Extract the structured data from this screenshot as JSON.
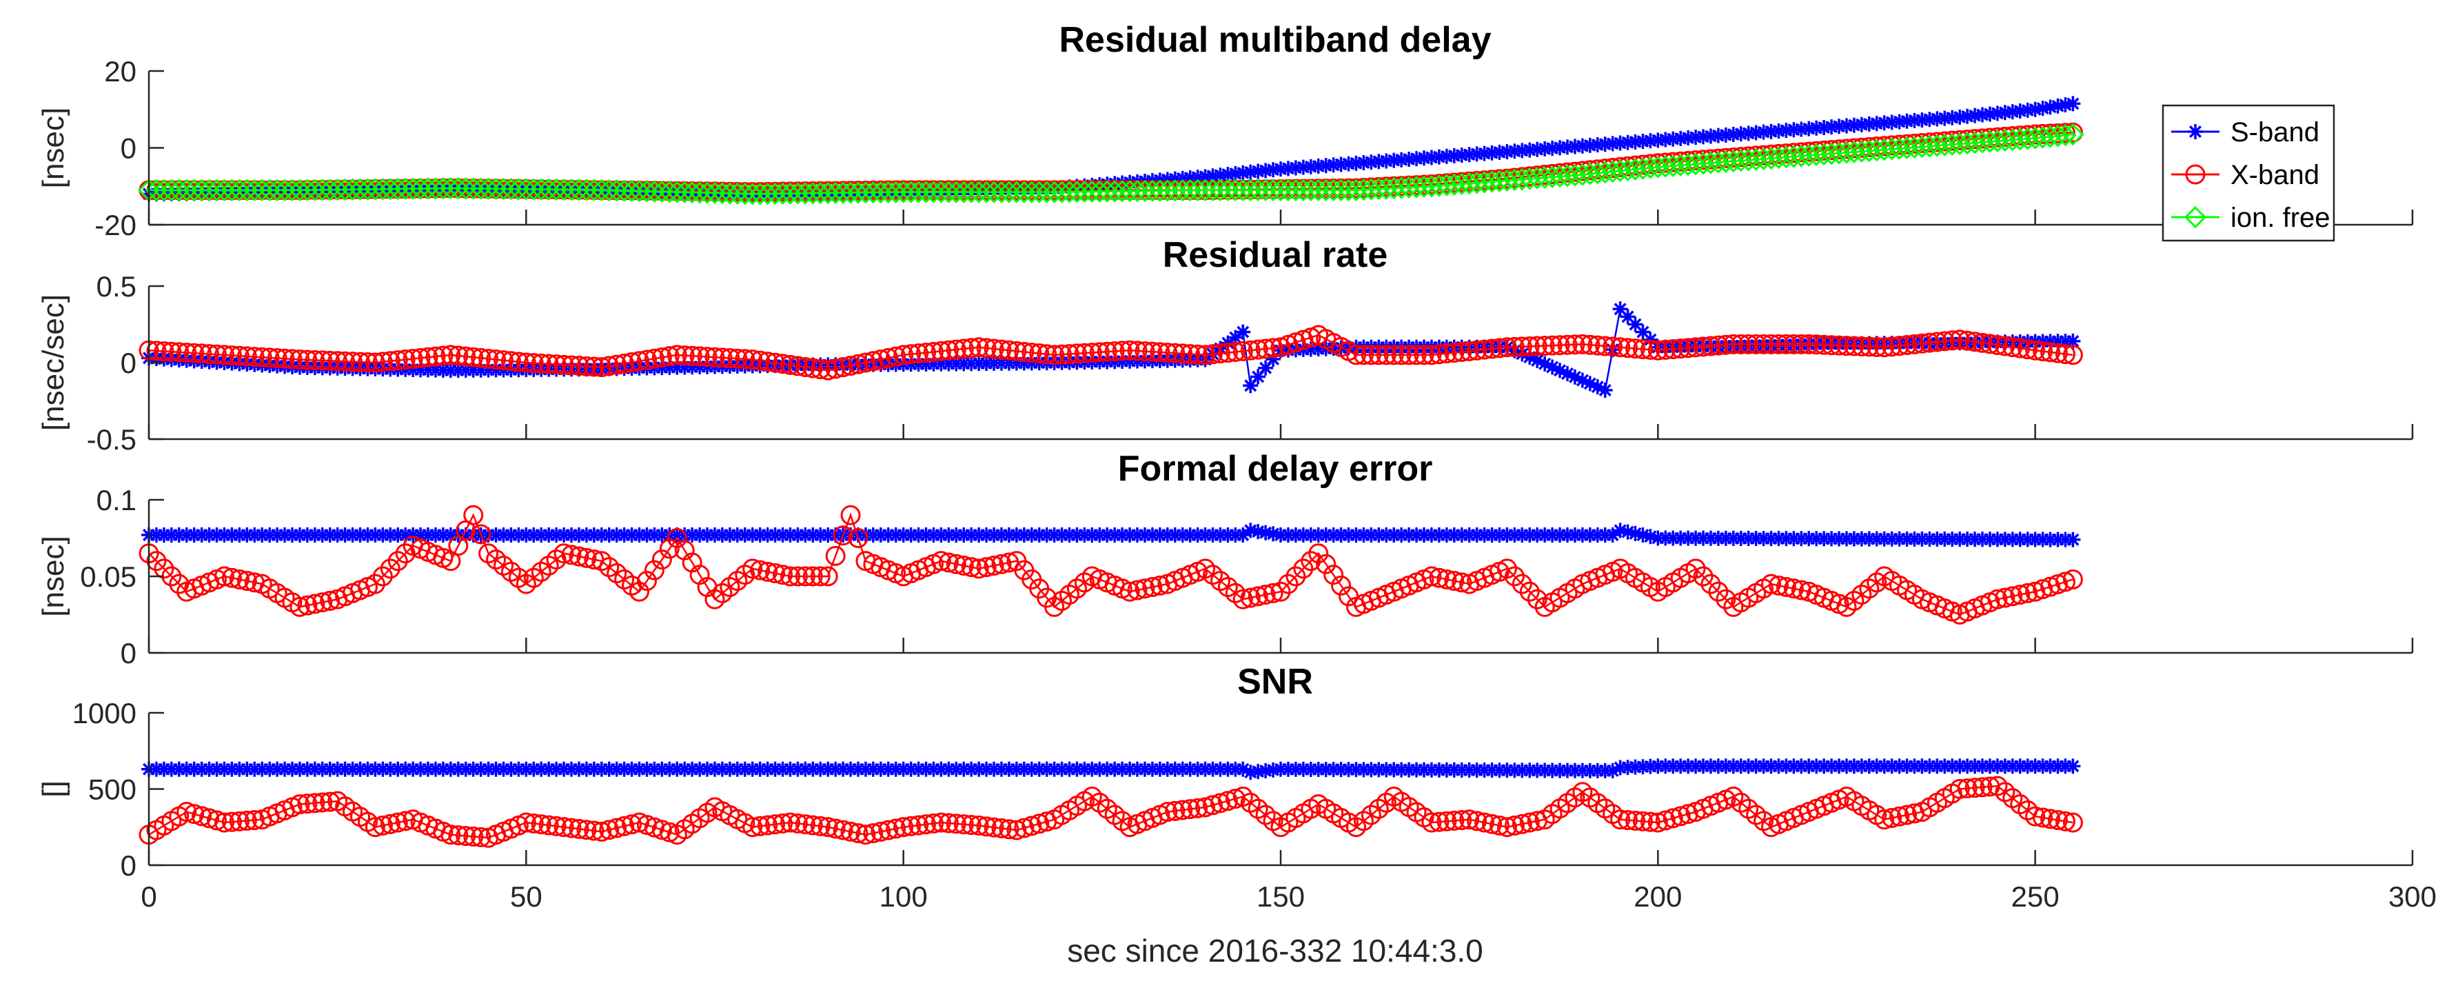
{
  "chart_data": [
    {
      "type": "line",
      "title": "Residual multiband delay",
      "ylabel": "[nsec]",
      "xlim": [
        0,
        300
      ],
      "ylim": [
        -20,
        20
      ],
      "yticks": [
        "20",
        "0",
        "-20"
      ],
      "series": [
        {
          "name": "S-band",
          "color": "#0000ff",
          "marker": "asterisk",
          "x": [
            0,
            20,
            40,
            60,
            80,
            100,
            120,
            130,
            140,
            150,
            160,
            170,
            180,
            190,
            200,
            210,
            220,
            230,
            240,
            250,
            255
          ],
          "values": [
            -12,
            -11.5,
            -11,
            -11,
            -11.5,
            -11,
            -10.5,
            -9,
            -7.5,
            -5.5,
            -4,
            -2.5,
            -1,
            0.5,
            2,
            3.5,
            5,
            6.5,
            8,
            10,
            11.5
          ]
        },
        {
          "name": "X-band",
          "color": "#ff0000",
          "marker": "circle",
          "x": [
            0,
            20,
            40,
            60,
            80,
            100,
            120,
            140,
            160,
            170,
            180,
            190,
            200,
            210,
            220,
            230,
            240,
            250,
            255
          ],
          "values": [
            -11,
            -11,
            -10.5,
            -11,
            -11.5,
            -11,
            -11,
            -11,
            -10.5,
            -9.5,
            -8,
            -6,
            -4,
            -2.5,
            -1,
            0.5,
            2,
            3.5,
            4
          ]
        },
        {
          "name": "ion. free",
          "color": "#00ff00",
          "marker": "diamond",
          "x": [
            0,
            20,
            40,
            60,
            80,
            100,
            120,
            140,
            160,
            170,
            180,
            190,
            200,
            210,
            220,
            230,
            240,
            250,
            255
          ],
          "values": [
            -11,
            -11,
            -10.5,
            -11,
            -12,
            -11.5,
            -11.5,
            -11,
            -11,
            -10,
            -8.5,
            -7,
            -5,
            -3.5,
            -2,
            -0.5,
            1,
            2.5,
            3.5
          ]
        }
      ],
      "legend": {
        "position": "top-right",
        "entries": [
          "S-band",
          "X-band",
          "ion. free"
        ]
      }
    },
    {
      "type": "line",
      "title": "Residual rate",
      "ylabel": "[nsec/sec]",
      "xlim": [
        0,
        300
      ],
      "ylim": [
        -0.5,
        0.5
      ],
      "yticks": [
        "0.5",
        "0",
        "-0.5"
      ],
      "series": [
        {
          "name": "S-band",
          "color": "#0000ff",
          "marker": "asterisk",
          "x": [
            0,
            20,
            40,
            60,
            80,
            100,
            120,
            140,
            145,
            146,
            150,
            160,
            180,
            193,
            195,
            200,
            220,
            240,
            255
          ],
          "values": [
            0.03,
            -0.03,
            -0.05,
            -0.04,
            -0.02,
            -0.01,
            0.0,
            0.02,
            0.2,
            -0.15,
            0.08,
            0.1,
            0.1,
            -0.18,
            0.35,
            0.1,
            0.12,
            0.13,
            0.14
          ]
        },
        {
          "name": "X-band",
          "color": "#ff0000",
          "marker": "circle",
          "x": [
            0,
            10,
            20,
            30,
            40,
            50,
            60,
            70,
            80,
            90,
            100,
            110,
            120,
            130,
            140,
            150,
            155,
            160,
            170,
            180,
            190,
            200,
            210,
            220,
            230,
            240,
            250,
            255
          ],
          "values": [
            0.08,
            0.05,
            0.02,
            0.0,
            0.05,
            0.0,
            -0.03,
            0.05,
            0.02,
            -0.05,
            0.05,
            0.1,
            0.05,
            0.08,
            0.05,
            0.1,
            0.18,
            0.05,
            0.05,
            0.1,
            0.12,
            0.08,
            0.12,
            0.12,
            0.1,
            0.15,
            0.08,
            0.05
          ]
        }
      ]
    },
    {
      "type": "line",
      "title": "Formal delay error",
      "ylabel": "[nsec]",
      "xlim": [
        0,
        300
      ],
      "ylim": [
        0,
        0.1
      ],
      "yticks": [
        "0.1",
        "0.05",
        "0"
      ],
      "series": [
        {
          "name": "S-band",
          "color": "#0000ff",
          "marker": "asterisk",
          "x": [
            0,
            50,
            100,
            145,
            146,
            150,
            194,
            195,
            200,
            255
          ],
          "values": [
            0.077,
            0.077,
            0.077,
            0.077,
            0.08,
            0.077,
            0.077,
            0.08,
            0.075,
            0.074
          ]
        },
        {
          "name": "X-band",
          "color": "#ff0000",
          "marker": "circle",
          "x": [
            0,
            5,
            10,
            15,
            20,
            25,
            30,
            35,
            40,
            43,
            45,
            50,
            55,
            60,
            65,
            70,
            75,
            80,
            85,
            90,
            93,
            95,
            100,
            105,
            110,
            115,
            120,
            125,
            130,
            135,
            140,
            145,
            150,
            155,
            160,
            165,
            170,
            175,
            180,
            185,
            190,
            195,
            200,
            205,
            210,
            215,
            220,
            225,
            230,
            235,
            240,
            245,
            250,
            255
          ],
          "values": [
            0.065,
            0.04,
            0.05,
            0.045,
            0.03,
            0.035,
            0.045,
            0.07,
            0.06,
            0.09,
            0.065,
            0.045,
            0.065,
            0.06,
            0.04,
            0.075,
            0.035,
            0.055,
            0.05,
            0.05,
            0.09,
            0.06,
            0.05,
            0.06,
            0.055,
            0.06,
            0.03,
            0.05,
            0.04,
            0.045,
            0.055,
            0.035,
            0.04,
            0.065,
            0.03,
            0.04,
            0.05,
            0.045,
            0.055,
            0.03,
            0.045,
            0.055,
            0.04,
            0.055,
            0.03,
            0.045,
            0.04,
            0.03,
            0.05,
            0.035,
            0.025,
            0.035,
            0.04,
            0.048
          ]
        }
      ]
    },
    {
      "type": "line",
      "title": "SNR",
      "ylabel": "[]",
      "xlabel": "sec since 2016-332 10:44:3.0",
      "xlim": [
        0,
        300
      ],
      "ylim": [
        0,
        1000
      ],
      "yticks": [
        "1000",
        "500",
        "0"
      ],
      "xticks": [
        "0",
        "50",
        "100",
        "150",
        "200",
        "250",
        "300"
      ],
      "series": [
        {
          "name": "S-band",
          "color": "#0000ff",
          "marker": "asterisk",
          "x": [
            0,
            50,
            100,
            145,
            146,
            150,
            194,
            195,
            200,
            255
          ],
          "values": [
            630,
            630,
            630,
            630,
            610,
            630,
            620,
            640,
            650,
            650
          ]
        },
        {
          "name": "X-band",
          "color": "#ff0000",
          "marker": "circle",
          "x": [
            0,
            5,
            10,
            15,
            20,
            25,
            30,
            35,
            40,
            45,
            50,
            55,
            60,
            65,
            70,
            75,
            80,
            85,
            90,
            95,
            100,
            105,
            110,
            115,
            120,
            125,
            130,
            135,
            140,
            145,
            150,
            155,
            160,
            165,
            170,
            175,
            180,
            185,
            190,
            195,
            200,
            205,
            210,
            215,
            220,
            225,
            230,
            235,
            240,
            245,
            250,
            255
          ],
          "values": [
            200,
            350,
            280,
            300,
            400,
            420,
            250,
            300,
            200,
            180,
            280,
            250,
            220,
            280,
            200,
            380,
            250,
            280,
            250,
            200,
            250,
            280,
            260,
            230,
            300,
            450,
            250,
            350,
            380,
            450,
            250,
            400,
            250,
            450,
            280,
            300,
            250,
            300,
            480,
            300,
            280,
            350,
            450,
            250,
            350,
            450,
            300,
            350,
            500,
            520,
            320,
            280
          ]
        }
      ]
    }
  ]
}
